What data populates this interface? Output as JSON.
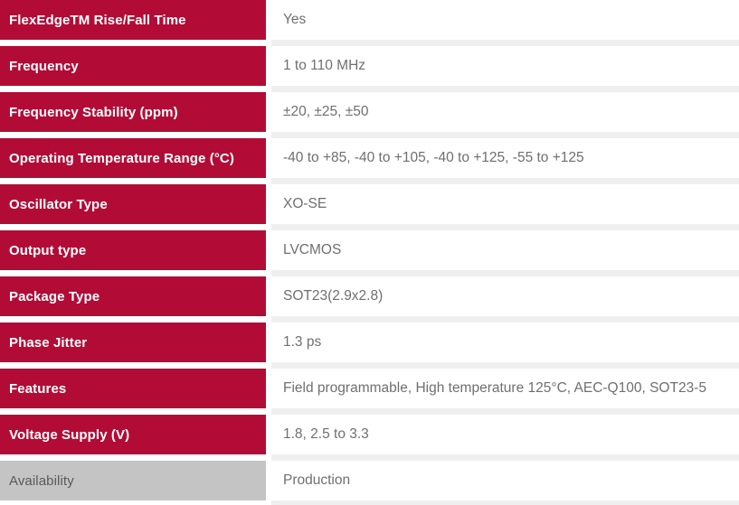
{
  "colors": {
    "label_red": "#b20c36",
    "label_gray_bg": "#c4c4c4",
    "label_gray_text": "#5a5a5a",
    "value_text": "#6f6f6f",
    "divider": "#efefef",
    "label_text": "#ffffff"
  },
  "table": {
    "rows": [
      {
        "label": "FlexEdgeTM Rise/Fall Time",
        "value": "Yes",
        "variant": "red"
      },
      {
        "label": "Frequency",
        "value": "1 to 110 MHz",
        "variant": "red"
      },
      {
        "label": "Frequency Stability (ppm)",
        "value": "±20, ±25, ±50",
        "variant": "red"
      },
      {
        "label": "Operating Temperature Range (°C)",
        "value": "-40 to +85, -40 to +105, -40 to +125, -55 to +125",
        "variant": "red"
      },
      {
        "label": "Oscillator Type",
        "value": "XO-SE",
        "variant": "red"
      },
      {
        "label": "Output type",
        "value": "LVCMOS",
        "variant": "red"
      },
      {
        "label": "Package Type",
        "value": "SOT23(2.9x2.8)",
        "variant": "red"
      },
      {
        "label": "Phase Jitter",
        "value": "1.3 ps",
        "variant": "red"
      },
      {
        "label": "Features",
        "value": "Field programmable, High temperature 125°C, AEC-Q100, SOT23-5",
        "variant": "red"
      },
      {
        "label": "Voltage Supply (V)",
        "value": "1.8, 2.5 to 3.3",
        "variant": "red"
      },
      {
        "label": "Availability",
        "value": "Production",
        "variant": "gray"
      }
    ]
  }
}
